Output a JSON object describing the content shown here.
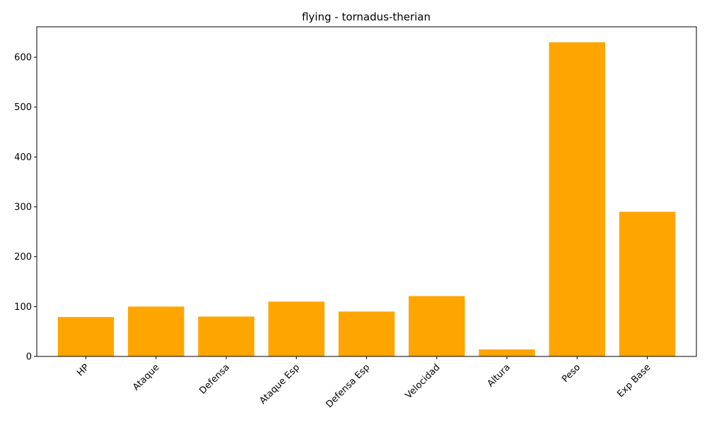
{
  "chart_data": {
    "type": "bar",
    "title": "flying - tornadus-therian",
    "xlabel": "",
    "ylabel": "",
    "categories": [
      "HP",
      "Ataque",
      "Defensa",
      "Ataque Esp",
      "Defensa Esp",
      "Velocidad",
      "Altura",
      "Peso",
      "Exp Base"
    ],
    "values": [
      79,
      100,
      80,
      110,
      90,
      121,
      14,
      630,
      290
    ],
    "ylim": [
      0,
      661
    ],
    "yticks": [
      0,
      100,
      200,
      300,
      400,
      500,
      600
    ],
    "bar_color": "#ffa500",
    "grid": false,
    "x_tick_rotation": 45
  }
}
